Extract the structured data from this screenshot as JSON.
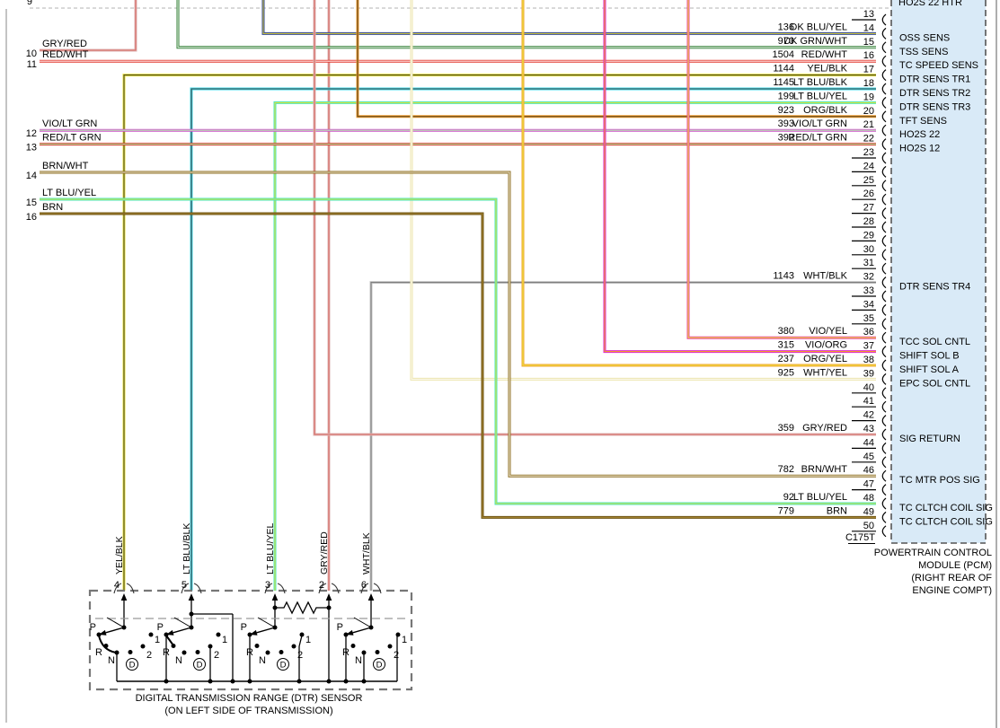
{
  "pcm": {
    "partial_top_label": "HO2S 22 HTR",
    "connector_id": "C175T",
    "module_label": [
      "POWERTRAIN CONTROL",
      "MODULE (PCM)",
      "(RIGHT REAR OF",
      "ENGINE COMPT)"
    ],
    "box_fill": "#d9eaf7",
    "pins": [
      {
        "n": 13,
        "label": ""
      },
      {
        "n": 14,
        "label": "OSS SENS"
      },
      {
        "n": 15,
        "label": "TSS SENS"
      },
      {
        "n": 16,
        "label": "TC SPEED SENS"
      },
      {
        "n": 17,
        "label": "DTR SENS TR1"
      },
      {
        "n": 18,
        "label": "DTR SENS TR2"
      },
      {
        "n": 19,
        "label": "DTR SENS TR3"
      },
      {
        "n": 20,
        "label": "TFT SENS"
      },
      {
        "n": 21,
        "label": "HO2S 22"
      },
      {
        "n": 22,
        "label": "HO2S 12"
      },
      {
        "n": 23,
        "label": ""
      },
      {
        "n": 24,
        "label": ""
      },
      {
        "n": 25,
        "label": ""
      },
      {
        "n": 26,
        "label": ""
      },
      {
        "n": 27,
        "label": ""
      },
      {
        "n": 28,
        "label": ""
      },
      {
        "n": 29,
        "label": ""
      },
      {
        "n": 30,
        "label": ""
      },
      {
        "n": 31,
        "label": ""
      },
      {
        "n": 32,
        "label": "DTR SENS TR4"
      },
      {
        "n": 33,
        "label": ""
      },
      {
        "n": 34,
        "label": ""
      },
      {
        "n": 35,
        "label": ""
      },
      {
        "n": 36,
        "label": "TCC SOL CNTL"
      },
      {
        "n": 37,
        "label": "SHIFT SOL B"
      },
      {
        "n": 38,
        "label": "SHIFT SOL A"
      },
      {
        "n": 39,
        "label": "EPC SOL CNTL"
      },
      {
        "n": 40,
        "label": ""
      },
      {
        "n": 41,
        "label": ""
      },
      {
        "n": 42,
        "label": ""
      },
      {
        "n": 43,
        "label": "SIG RETURN"
      },
      {
        "n": 44,
        "label": ""
      },
      {
        "n": 45,
        "label": ""
      },
      {
        "n": 46,
        "label": "TC MTR POS SIG"
      },
      {
        "n": 47,
        "label": ""
      },
      {
        "n": 48,
        "label": "TC CLTCH COIL SIG"
      },
      {
        "n": 49,
        "label": "TC CLTCH COIL SIG"
      },
      {
        "n": 50,
        "label": ""
      }
    ]
  },
  "wires": [
    {
      "num": "136",
      "color": "DK BLU/YEL",
      "to_pin": 14
    },
    {
      "num": "970",
      "color": "DK GRN/WHT",
      "to_pin": 15
    },
    {
      "num": "1504",
      "color": "RED/WHT",
      "to_pin": 16
    },
    {
      "num": "1144",
      "color": "YEL/BLK",
      "to_pin": 17
    },
    {
      "num": "1145",
      "color": "LT BLU/BLK",
      "to_pin": 18
    },
    {
      "num": "199",
      "color": "LT BLU/YEL",
      "to_pin": 19
    },
    {
      "num": "923",
      "color": "ORG/BLK",
      "to_pin": 20
    },
    {
      "num": "393",
      "color": "VIO/LT GRN",
      "to_pin": 21
    },
    {
      "num": "392",
      "color": "RED/LT GRN",
      "to_pin": 22
    },
    {
      "num": "1143",
      "color": "WHT/BLK",
      "to_pin": 32
    },
    {
      "num": "380",
      "color": "VIO/YEL",
      "to_pin": 36
    },
    {
      "num": "315",
      "color": "VIO/ORG",
      "to_pin": 37
    },
    {
      "num": "237",
      "color": "ORG/YEL",
      "to_pin": 38
    },
    {
      "num": "925",
      "color": "WHT/YEL",
      "to_pin": 39
    },
    {
      "num": "359",
      "color": "GRY/RED",
      "to_pin": 43
    },
    {
      "num": "782",
      "color": "BRN/WHT",
      "to_pin": 46
    },
    {
      "num": "92",
      "color": "LT BLU/YEL",
      "to_pin": 48
    },
    {
      "num": "779",
      "color": "BRN",
      "to_pin": 49
    }
  ],
  "left_connector": {
    "partial_pin": "9",
    "rows": [
      {
        "n": 10,
        "color": "GRY/RED"
      },
      {
        "n": 11,
        "color": "RED/WHT"
      },
      {
        "n": 12,
        "color": "VIO/LT GRN"
      },
      {
        "n": 13,
        "color": "RED/LT GRN"
      },
      {
        "n": 14,
        "color": "BRN/WHT"
      },
      {
        "n": 15,
        "color": "LT BLU/YEL"
      },
      {
        "n": 16,
        "color": "BRN"
      }
    ]
  },
  "dtr": {
    "caption": [
      "DIGITAL TRANSMISSION RANGE (DTR) SENSOR",
      "(ON LEFT SIDE OF TRANSMISSION)"
    ],
    "pins": [
      {
        "n": "4",
        "color": "YEL/BLK"
      },
      {
        "n": "5",
        "color": "LT BLU/BLK"
      },
      {
        "n": "3",
        "color": "LT BLU/YEL"
      },
      {
        "n": "2",
        "color": "GRY/RED"
      },
      {
        "n": "6",
        "color": "WHT/BLK"
      }
    ],
    "positions": [
      "P",
      "R",
      "N",
      "D",
      "1",
      "2"
    ]
  },
  "palette": {
    "DK BLU/YEL": {
      "base": "#31479e",
      "core": "#c9c23e"
    },
    "DK GRN/WHT": {
      "base": "#2e7d32",
      "core": "#e6f2e6"
    },
    "RED/WHT": {
      "base": "#e23b30",
      "core": "#ffe8e8"
    },
    "YEL/BLK": {
      "base": "#e9e13c",
      "core": "#4a4a22"
    },
    "LT BLU/BLK": {
      "base": "#3fd8e8",
      "core": "#3c4444"
    },
    "LT BLU/YEL": {
      "base": "#46e6c2",
      "core": "#dce23c"
    },
    "ORG/BLK": {
      "base": "#f29b2e",
      "core": "#5a4418"
    },
    "VIO/LT GRN": {
      "base": "#cf52cc",
      "core": "#b9edb0"
    },
    "RED/LT GRN": {
      "base": "#da3a31",
      "core": "#aae6a0"
    },
    "BRN/WHT": {
      "base": "#8c6c20",
      "core": "#f0ead6"
    },
    "WHT/BLK": {
      "base": "#c6c6c6",
      "core": "#7d7d7d"
    },
    "VIO/YEL": {
      "base": "#ec3fa4",
      "core": "#e9e13c"
    },
    "VIO/ORG": {
      "base": "#dc2ad4",
      "core": "#f29b2e"
    },
    "ORG/YEL": {
      "base": "#f2a430",
      "core": "#ece23e"
    },
    "WHT/YEL": {
      "base": "#ece5ae",
      "core": "#fbf8ec"
    },
    "GRY/RED": {
      "base": "#ddb3b3",
      "core": "#d96a62"
    },
    "BRN": {
      "base": "#6f5413",
      "core": "#a0812f"
    }
  }
}
